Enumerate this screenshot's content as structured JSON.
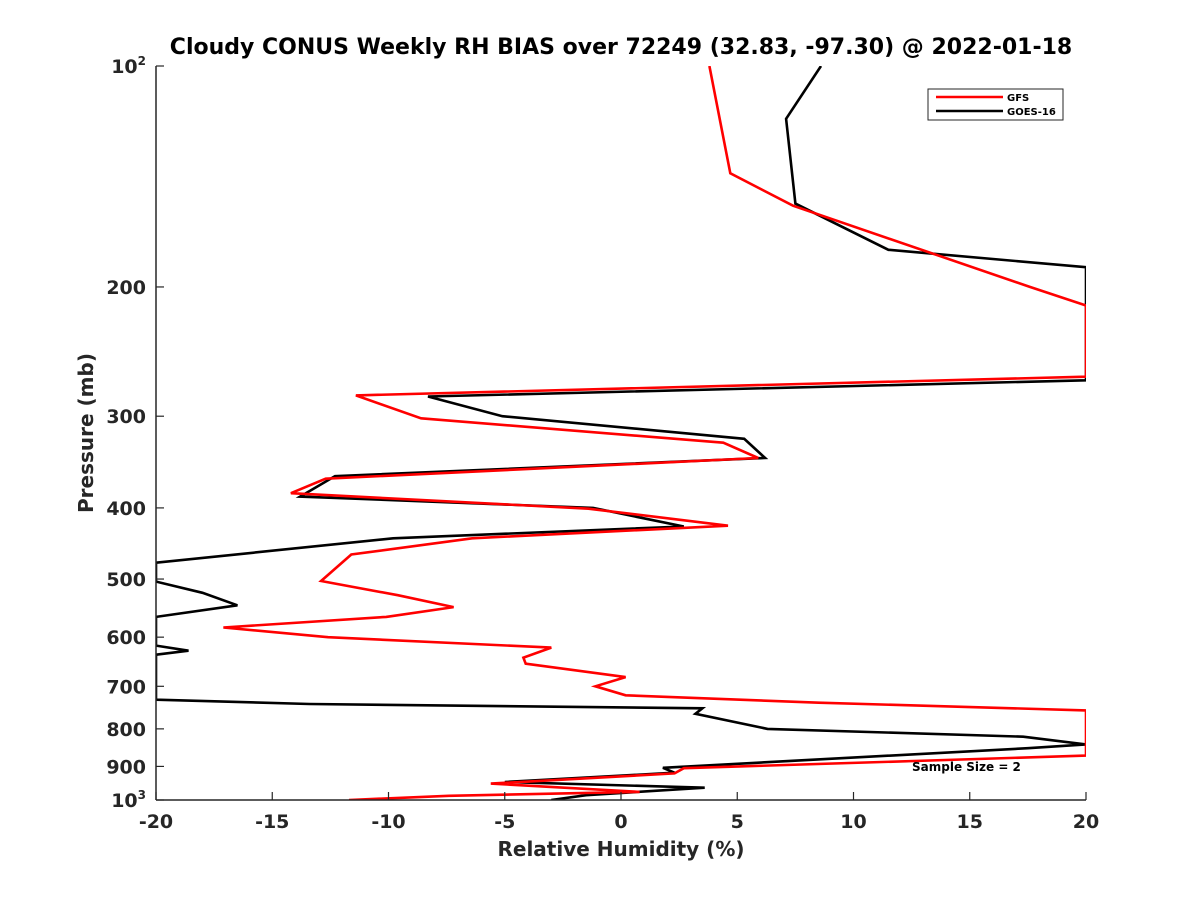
{
  "chart_data": {
    "type": "line",
    "title": "Cloudy CONUS Weekly RH BIAS over 72249 (32.83, -97.30) @ 2022-01-18",
    "xlabel": "Relative Humidity (%)",
    "ylabel": "Pressure (mb)",
    "xlim": [
      -20,
      20
    ],
    "ylim": [
      100,
      1000
    ],
    "y_scale": "log",
    "y_reversed": true,
    "grid": false,
    "legend_position": "top-right",
    "xticks": [
      -20,
      -15,
      -10,
      -5,
      0,
      5,
      10,
      15,
      20
    ],
    "xtick_labels": [
      "-20",
      "-15",
      "-10",
      "-5",
      "0",
      "5",
      "10",
      "15",
      "20"
    ],
    "yticks": [
      {
        "value": 100,
        "base": "10",
        "exp": "2"
      },
      {
        "value": 200,
        "label": "200"
      },
      {
        "value": 300,
        "label": "300"
      },
      {
        "value": 400,
        "label": "400"
      },
      {
        "value": 500,
        "label": "500"
      },
      {
        "value": 600,
        "label": "600"
      },
      {
        "value": 700,
        "label": "700"
      },
      {
        "value": 800,
        "label": "800"
      },
      {
        "value": 900,
        "label": "900"
      },
      {
        "value": 1000,
        "base": "10",
        "exp": "3"
      }
    ],
    "annotation": "Sample Size = 2",
    "series": [
      {
        "name": "GFS",
        "color": "#ff0000",
        "points": [
          [
            3.8,
            100
          ],
          [
            4.7,
            140
          ],
          [
            7.4,
            155
          ],
          [
            17.6,
            200
          ],
          [
            20,
            212
          ],
          [
            20,
            265
          ],
          [
            -11.4,
            281
          ],
          [
            -8.6,
            302
          ],
          [
            4.4,
            326
          ],
          [
            5.9,
            342
          ],
          [
            -12.7,
            365
          ],
          [
            -14.2,
            382
          ],
          [
            -1.4,
            401
          ],
          [
            4.6,
            423
          ],
          [
            -6.4,
            440
          ],
          [
            -11.6,
            463
          ],
          [
            -12.9,
            503
          ],
          [
            -9.6,
            526
          ],
          [
            -7.2,
            546
          ],
          [
            -10.1,
            563
          ],
          [
            -17.1,
            582
          ],
          [
            -12.6,
            600
          ],
          [
            -3.0,
            620
          ],
          [
            -4.2,
            640
          ],
          [
            -4.1,
            652
          ],
          [
            0.2,
            680
          ],
          [
            -1.1,
            700
          ],
          [
            0.2,
            720
          ],
          [
            8.5,
            737
          ],
          [
            20,
            755
          ],
          [
            20,
            870
          ],
          [
            2.7,
            905
          ],
          [
            2.3,
            920
          ],
          [
            -5.6,
            950
          ],
          [
            0.8,
            975
          ],
          [
            -7.4,
            987
          ],
          [
            -11.7,
            1000
          ]
        ]
      },
      {
        "name": "GOES-16",
        "color": "#000000",
        "points": [
          [
            8.6,
            100
          ],
          [
            7.1,
            118
          ],
          [
            7.5,
            154
          ],
          [
            11.5,
            178
          ],
          [
            20,
            188
          ],
          [
            20,
            268
          ],
          [
            -8.3,
            282
          ],
          [
            -5.1,
            300
          ],
          [
            5.3,
            322
          ],
          [
            6.2,
            342
          ],
          [
            -12.3,
            362
          ],
          [
            -13.8,
            386
          ],
          [
            -1.2,
            400
          ],
          [
            2.7,
            424
          ],
          [
            -9.8,
            440
          ],
          [
            -20,
            475
          ],
          [
            -20,
            504
          ],
          [
            -18,
            522
          ],
          [
            -16.5,
            543
          ],
          [
            -20,
            563
          ],
          [
            -20,
            616
          ],
          [
            -18.6,
            626
          ],
          [
            -20,
            634
          ],
          [
            -20,
            730
          ],
          [
            -13.4,
            740
          ],
          [
            3.5,
            750
          ],
          [
            3.2,
            763
          ],
          [
            6.3,
            800
          ],
          [
            17.3,
            820
          ],
          [
            20,
            840
          ],
          [
            17.5,
            850
          ],
          [
            1.8,
            904
          ],
          [
            2.3,
            918
          ],
          [
            -5.0,
            945
          ],
          [
            3.6,
            962
          ],
          [
            -1.5,
            985
          ],
          [
            -3.0,
            1000
          ]
        ]
      }
    ]
  }
}
